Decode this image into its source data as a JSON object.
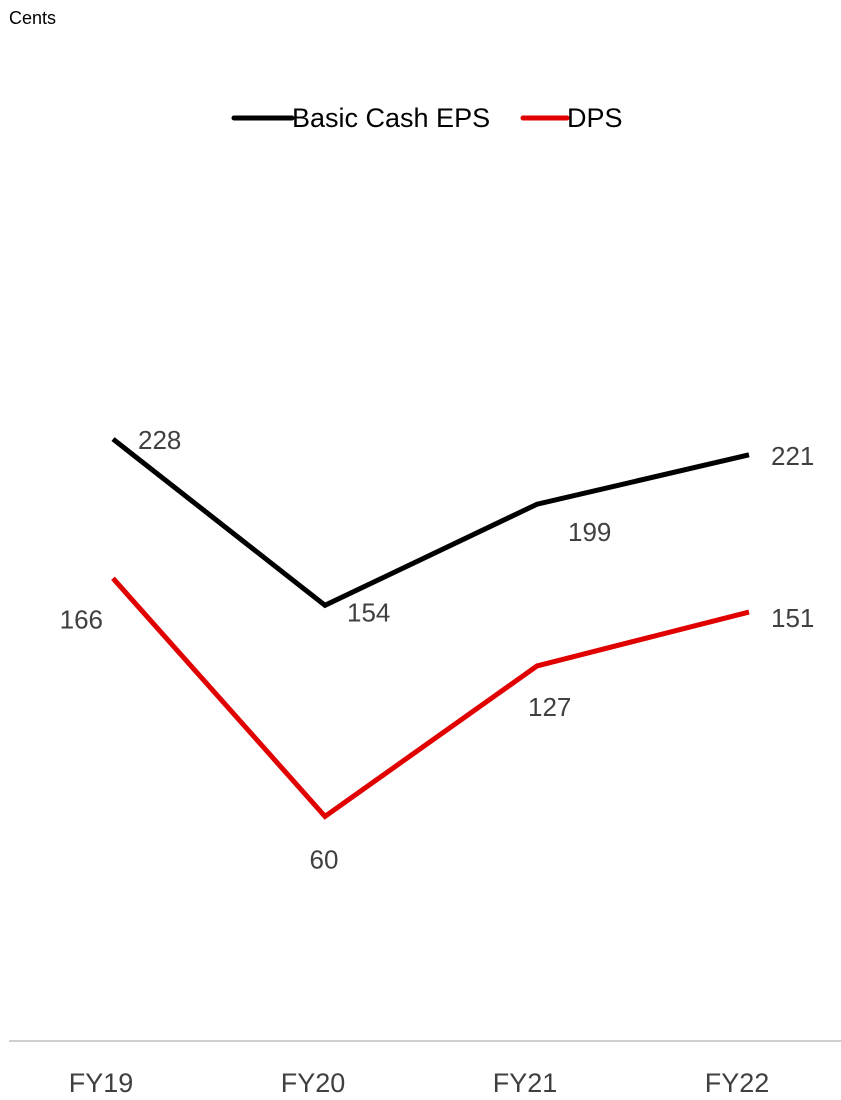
{
  "chart_data": {
    "type": "line",
    "unit_label": "Cents",
    "categories": [
      "FY19",
      "FY20",
      "FY21",
      "FY22"
    ],
    "series": [
      {
        "name": "Basic Cash EPS",
        "values": [
          228,
          154,
          199,
          221
        ],
        "color": "#000000"
      },
      {
        "name": "DPS",
        "values": [
          166,
          60,
          127,
          151
        ],
        "color": "#e00000"
      }
    ],
    "ylim": [
      -40,
      330
    ],
    "grid": false,
    "legend_position": "top-center",
    "axis_line_color": "#bfbfbf"
  }
}
